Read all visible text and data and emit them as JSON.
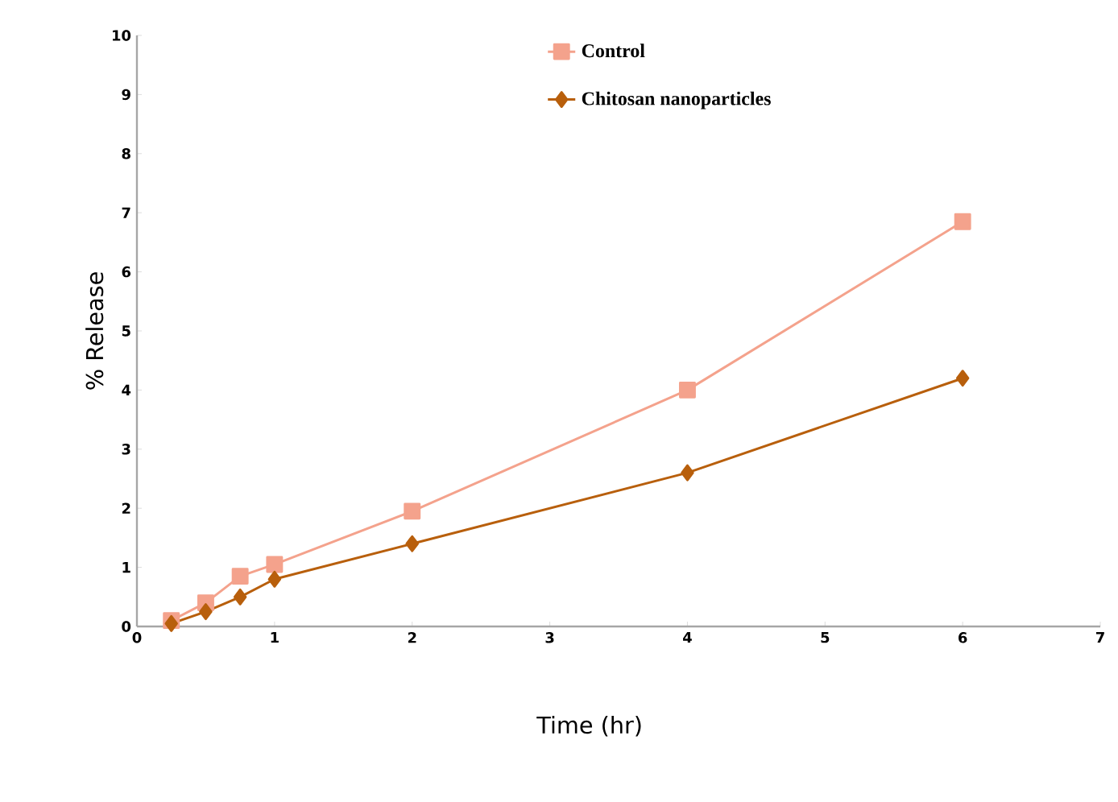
{
  "chart_data": {
    "type": "line",
    "xlabel": "Time (hr)",
    "ylabel": "% Release",
    "xlim": [
      0,
      7
    ],
    "ylim": [
      0,
      10
    ],
    "xticks": [
      0,
      1,
      2,
      3,
      4,
      5,
      6,
      7
    ],
    "yticks": [
      0,
      1,
      2,
      3,
      4,
      5,
      6,
      7,
      8,
      9,
      10
    ],
    "legend": "top",
    "line_style": "solid",
    "series": [
      {
        "name": "Control",
        "color": "#f4a28c",
        "marker": "square",
        "x": [
          0.25,
          0.5,
          0.75,
          1,
          2,
          4,
          6
        ],
        "values": [
          0.1,
          0.4,
          0.85,
          1.05,
          1.95,
          4.0,
          6.85
        ]
      },
      {
        "name": "Chitosan nanoparticles",
        "color": "#b85f0c",
        "marker": "diamond",
        "x": [
          0.25,
          0.5,
          0.75,
          1,
          2,
          4,
          6
        ],
        "values": [
          0.05,
          0.25,
          0.5,
          0.8,
          1.4,
          2.6,
          4.2
        ]
      }
    ]
  }
}
